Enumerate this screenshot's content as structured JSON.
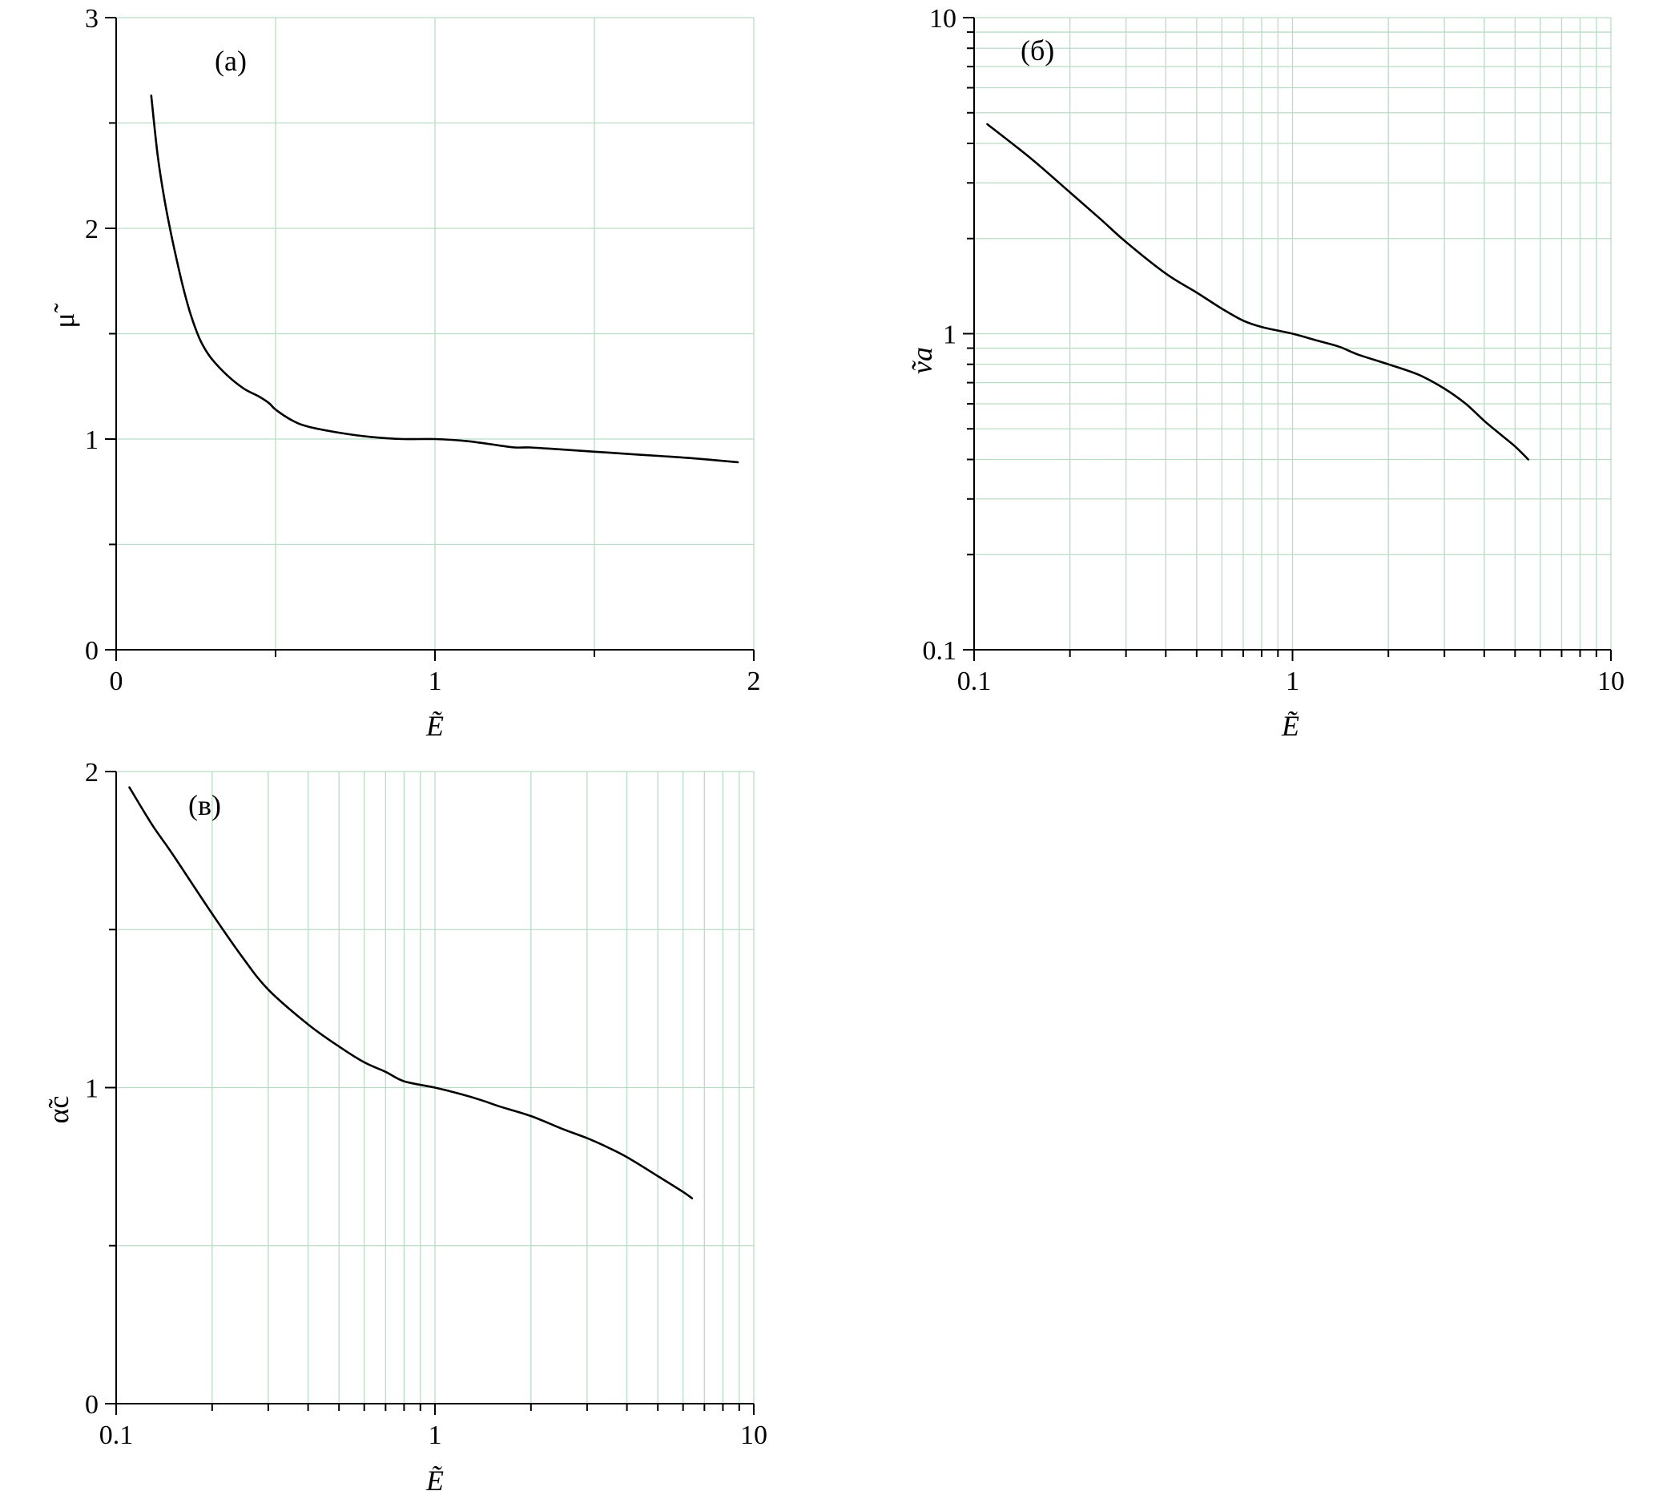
{
  "chart_data": [
    {
      "panel_label": "(a)",
      "type": "line",
      "xscale": "linear",
      "yscale": "linear",
      "xlim": [
        0,
        2
      ],
      "ylim": [
        0,
        3
      ],
      "xticks": [
        0,
        1,
        2
      ],
      "xtick_labels": [
        "0",
        "1",
        "2"
      ],
      "yticks": [
        0,
        1,
        2,
        3
      ],
      "ytick_labels": [
        "0",
        "1",
        "2",
        "3"
      ],
      "xlabel": "Ẽ",
      "ylabel": "μ̃",
      "grid": true,
      "series": [
        {
          "x": [
            0.11,
            0.13,
            0.15,
            0.17,
            0.19,
            0.21,
            0.23,
            0.25,
            0.27,
            0.3,
            0.35,
            0.4,
            0.45,
            0.48,
            0.5,
            0.55,
            0.6,
            0.7,
            0.8,
            0.9,
            1.0,
            1.1,
            1.2,
            1.25,
            1.3,
            1.4,
            1.5,
            1.6,
            1.7,
            1.8,
            1.95
          ],
          "y": [
            2.63,
            2.35,
            2.15,
            1.99,
            1.85,
            1.72,
            1.61,
            1.52,
            1.45,
            1.38,
            1.3,
            1.24,
            1.2,
            1.17,
            1.14,
            1.09,
            1.06,
            1.03,
            1.01,
            1.0,
            1.0,
            0.99,
            0.97,
            0.96,
            0.96,
            0.95,
            0.94,
            0.93,
            0.92,
            0.91,
            0.89
          ]
        }
      ]
    },
    {
      "panel_label": "(б)",
      "type": "line",
      "xscale": "log",
      "yscale": "log",
      "xlim": [
        0.1,
        10
      ],
      "ylim": [
        0.1,
        10
      ],
      "xticks": [
        0.1,
        1,
        10
      ],
      "xtick_labels": [
        "0.1",
        "1",
        "10"
      ],
      "yticks": [
        0.1,
        1,
        10
      ],
      "ytick_labels": [
        "0.1",
        "1",
        "10"
      ],
      "xlabel": "Ẽ",
      "ylabel": "ṽa",
      "grid": true,
      "series": [
        {
          "x": [
            0.11,
            0.15,
            0.2,
            0.25,
            0.3,
            0.4,
            0.5,
            0.6,
            0.7,
            0.8,
            1.0,
            1.2,
            1.4,
            1.6,
            2.0,
            2.5,
            3.0,
            3.5,
            4.0,
            4.5,
            5.0,
            5.5
          ],
          "y": [
            4.6,
            3.6,
            2.8,
            2.3,
            1.95,
            1.55,
            1.35,
            1.2,
            1.1,
            1.05,
            1.0,
            0.95,
            0.91,
            0.86,
            0.8,
            0.74,
            0.67,
            0.6,
            0.53,
            0.48,
            0.44,
            0.4
          ]
        }
      ]
    },
    {
      "panel_label": "(в)",
      "type": "line",
      "xscale": "log",
      "yscale": "linear",
      "xlim": [
        0.1,
        10
      ],
      "ylim": [
        0,
        2
      ],
      "xticks": [
        0.1,
        1,
        10
      ],
      "xtick_labels": [
        "0.1",
        "1",
        "10"
      ],
      "yticks": [
        0,
        1,
        2
      ],
      "ytick_labels": [
        "0",
        "1",
        "2"
      ],
      "xlabel": "Ẽ",
      "ylabel": "α̃c",
      "grid": true,
      "series": [
        {
          "x": [
            0.11,
            0.13,
            0.15,
            0.2,
            0.25,
            0.3,
            0.4,
            0.5,
            0.6,
            0.7,
            0.8,
            1.0,
            1.2,
            1.4,
            1.6,
            2.0,
            2.5,
            3.0,
            3.5,
            4.0,
            5.0,
            6.0,
            6.4
          ],
          "y": [
            1.95,
            1.83,
            1.74,
            1.55,
            1.41,
            1.31,
            1.2,
            1.13,
            1.08,
            1.05,
            1.02,
            1.0,
            0.98,
            0.96,
            0.94,
            0.91,
            0.87,
            0.84,
            0.81,
            0.78,
            0.72,
            0.67,
            0.65
          ]
        }
      ]
    }
  ]
}
